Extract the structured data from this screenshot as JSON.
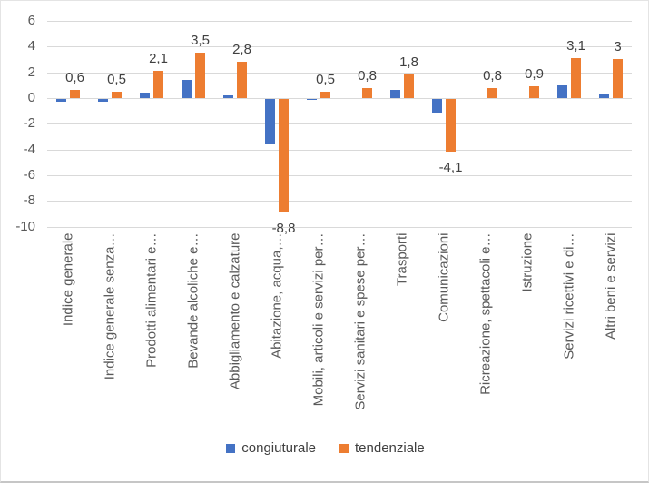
{
  "chart_data": {
    "type": "bar",
    "title": "",
    "categories": [
      "Indice generale",
      "Indice generale senza…",
      "Prodotti alimentari e…",
      "Bevande alcoliche e…",
      "Abbigliamento e calzature",
      "Abitazione, acqua,…",
      "Mobili, articoli e servizi per…",
      "Servizi sanitari e spese per…",
      "Trasporti",
      "Comunicazioni",
      "Ricreazione, spettacoli e…",
      "Istruzione",
      "Servizi ricettivi e di…",
      "Altri beni e servizi"
    ],
    "series": [
      {
        "name": "congiuturale",
        "color": "#4472C4",
        "values": [
          -0.2,
          -0.2,
          0.4,
          1.4,
          0.2,
          -3.5,
          -0.1,
          0,
          0.6,
          -1.1,
          0,
          0,
          1.0,
          0.3
        ]
      },
      {
        "name": "tendenziale",
        "color": "#ED7D31",
        "values": [
          0.6,
          0.5,
          2.1,
          3.5,
          2.8,
          -8.8,
          0.5,
          0.8,
          1.8,
          -4.1,
          0.8,
          0.9,
          3.1,
          3.0
        ],
        "labels": [
          "0,6",
          "0,5",
          "2,1",
          "3,5",
          "2,8",
          "-8,8",
          "0,5",
          "0,8",
          "1,8",
          "-4,1",
          "0,8",
          "0,9",
          "3,1",
          "3"
        ]
      }
    ],
    "yticks": [
      6,
      4,
      2,
      0,
      -2,
      -4,
      -6,
      -8,
      -10
    ],
    "ytick_labels": [
      "6",
      "4",
      "2",
      "0",
      "-2",
      "-4",
      "-6",
      "-8",
      "-10"
    ],
    "ylim": [
      -10,
      6
    ],
    "grid": true,
    "legend_position": "bottom",
    "gridline_color": "#d9d9d9",
    "axis_text_color": "#595959",
    "data_label_color": "#404040"
  }
}
